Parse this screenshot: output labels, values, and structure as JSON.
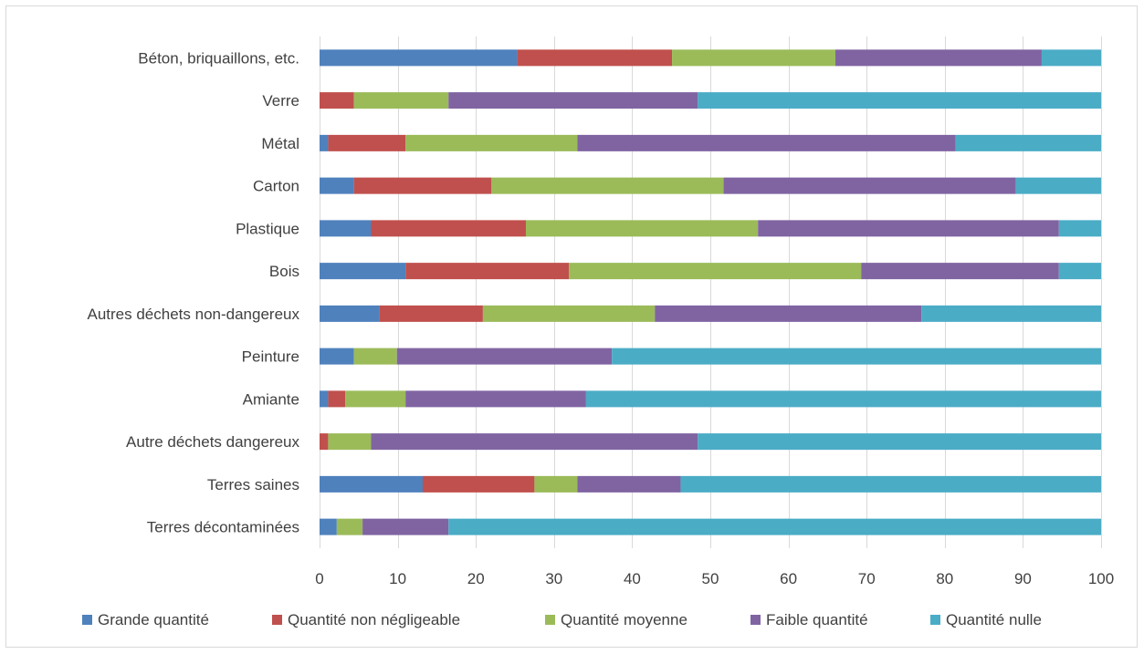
{
  "chart_data": {
    "type": "bar",
    "orientation": "horizontal",
    "stacked": true,
    "title": "",
    "xlabel": "",
    "ylabel": "",
    "xlim": [
      0,
      100
    ],
    "xticks": [
      0,
      10,
      20,
      30,
      40,
      50,
      60,
      70,
      80,
      90,
      100
    ],
    "grid": "vertical",
    "legend_position": "bottom",
    "categories": [
      "Béton, briquaillons, etc.",
      "Verre",
      "Métal",
      "Carton",
      "Plastique",
      "Bois",
      "Autres déchets non-dangereux",
      "Peinture",
      "Amiante",
      "Autre déchets dangereux",
      "Terres saines",
      "Terres décontaminées"
    ],
    "series": [
      {
        "name": "Grande quantité",
        "color": "#4f81bd",
        "values": [
          25.3,
          0,
          1.1,
          4.4,
          6.6,
          11.0,
          7.7,
          4.4,
          1.1,
          0,
          13.2,
          2.2
        ]
      },
      {
        "name": "Quantité non négligeable",
        "color": "#c0504d",
        "values": [
          19.8,
          4.4,
          9.9,
          17.6,
          19.8,
          20.9,
          13.2,
          0,
          2.2,
          1.1,
          14.3,
          0
        ]
      },
      {
        "name": "Quantité moyenne",
        "color": "#9bbb59",
        "values": [
          20.9,
          12.1,
          22.0,
          29.7,
          29.7,
          37.4,
          22.0,
          5.5,
          7.7,
          5.5,
          5.5,
          3.3
        ]
      },
      {
        "name": "Faible quantité",
        "color": "#8064a2",
        "values": [
          26.4,
          31.9,
          48.4,
          37.4,
          38.5,
          25.3,
          34.1,
          27.5,
          23.1,
          41.8,
          13.2,
          11.0
        ]
      },
      {
        "name": "Quantité nulle",
        "color": "#4bacc6",
        "values": [
          7.6,
          51.6,
          18.6,
          10.9,
          5.4,
          5.4,
          23.0,
          62.6,
          65.9,
          51.6,
          53.8,
          83.5
        ]
      }
    ]
  }
}
